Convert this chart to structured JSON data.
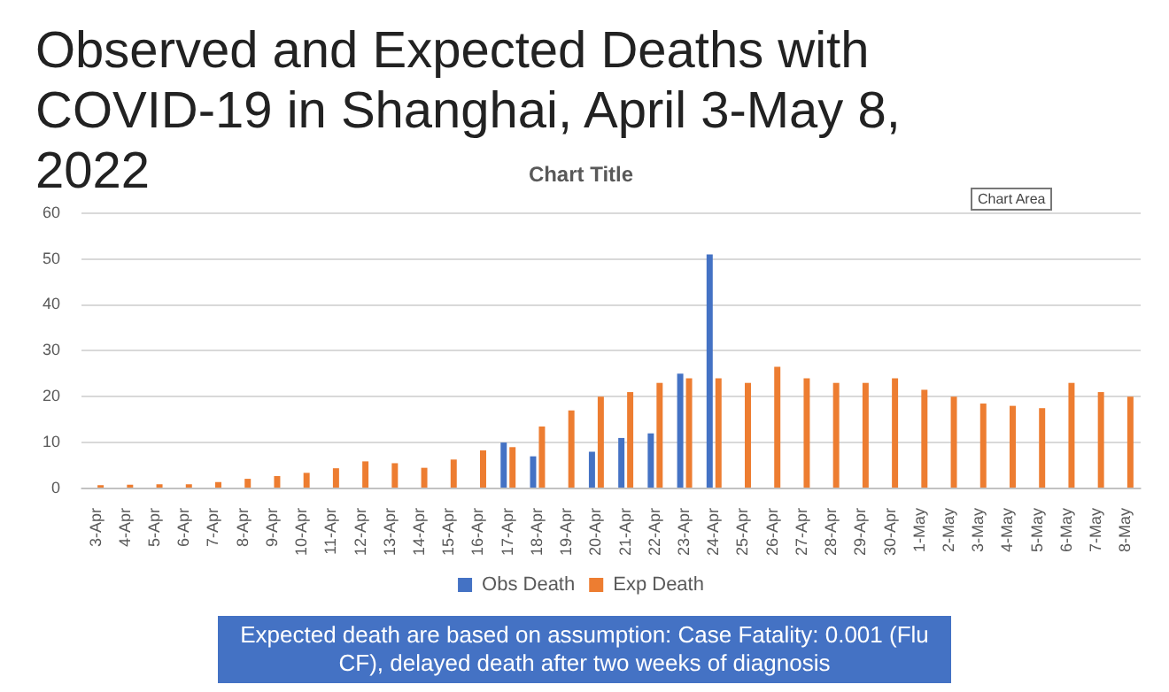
{
  "chart_data": {
    "type": "bar",
    "title": "Observed and Expected Deaths with COVID-19 in Shanghai, April 3-May 8, 2022",
    "subtitle": "Chart Title",
    "categories": [
      "3-Apr",
      "4-Apr",
      "5-Apr",
      "6-Apr",
      "7-Apr",
      "8-Apr",
      "9-Apr",
      "10-Apr",
      "11-Apr",
      "12-Apr",
      "13-Apr",
      "14-Apr",
      "15-Apr",
      "16-Apr",
      "17-Apr",
      "18-Apr",
      "19-Apr",
      "20-Apr",
      "21-Apr",
      "22-Apr",
      "23-Apr",
      "24-Apr",
      "25-Apr",
      "26-Apr",
      "27-Apr",
      "28-Apr",
      "29-Apr",
      "30-Apr",
      "1-May",
      "2-May",
      "3-May",
      "4-May",
      "5-May",
      "6-May",
      "7-May",
      "8-May"
    ],
    "series": [
      {
        "name": "Obs Death",
        "color": "#4472c4",
        "values": [
          null,
          null,
          null,
          null,
          null,
          null,
          null,
          null,
          null,
          null,
          null,
          null,
          null,
          null,
          10,
          7,
          null,
          8,
          11,
          12,
          25,
          51,
          null,
          null,
          null,
          null,
          null,
          null,
          null,
          null,
          null,
          null,
          null,
          null,
          null,
          null
        ]
      },
      {
        "name": "Exp Death",
        "color": "#ed7d31",
        "values": [
          0.7,
          0.8,
          0.9,
          0.9,
          1.4,
          2.1,
          2.7,
          3.4,
          4.4,
          5.9,
          5.5,
          4.5,
          6.3,
          8.3,
          9,
          13.5,
          17,
          20,
          21,
          23,
          24,
          24,
          23,
          26.5,
          24,
          23,
          23,
          24,
          21.5,
          20,
          18.5,
          18,
          17.5,
          23,
          21,
          20
        ]
      }
    ],
    "ylim": [
      0,
      60
    ],
    "yticks": [
      0,
      10,
      20,
      30,
      40,
      50,
      60
    ],
    "grid": "y",
    "legend": "bottom",
    "annotations": [
      "Chart Area",
      "Expected death are based on assumption: Case Fatality: 0.001 (Flu CF), delayed death after two weeks of diagnosis"
    ]
  }
}
